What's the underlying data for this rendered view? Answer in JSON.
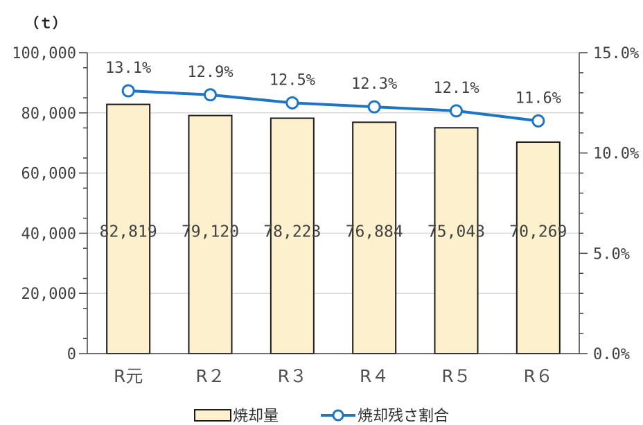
{
  "chart_data": {
    "type": "bar",
    "title": "",
    "categories": [
      "R元",
      "R２",
      "R３",
      "R４",
      "R５",
      "R６"
    ],
    "series": [
      {
        "name": "焼却量",
        "type": "bar",
        "axis": "left",
        "values": [
          82819,
          79120,
          78223,
          76884,
          75043,
          70269
        ],
        "labels": [
          "82,819",
          "79,120",
          "78,223",
          "76,884",
          "75,043",
          "70,269"
        ]
      },
      {
        "name": "焼却残さ割合",
        "type": "line",
        "axis": "right",
        "values": [
          13.1,
          12.9,
          12.5,
          12.3,
          12.1,
          11.6
        ],
        "labels": [
          "13.1%",
          "12.9%",
          "12.5%",
          "12.3%",
          "12.1%",
          "11.6%"
        ]
      }
    ],
    "y_left": {
      "label": "（ｔ）",
      "ylim": [
        0,
        100000
      ],
      "ticks": [
        "0",
        "20,000",
        "40,000",
        "60,000",
        "80,000",
        "100,000"
      ]
    },
    "y_right": {
      "ylim": [
        0,
        15
      ],
      "ticks": [
        "0.0%",
        "5.0%",
        "10.0%",
        "15.0%"
      ]
    },
    "grid": true,
    "legend": "bottom"
  },
  "colors": {
    "bar_fill": "#fdf0cc",
    "bar_stroke": "#1a1a1a",
    "line": "#1d75c3",
    "grid": "#d9d9d9",
    "axis": "#404040"
  }
}
